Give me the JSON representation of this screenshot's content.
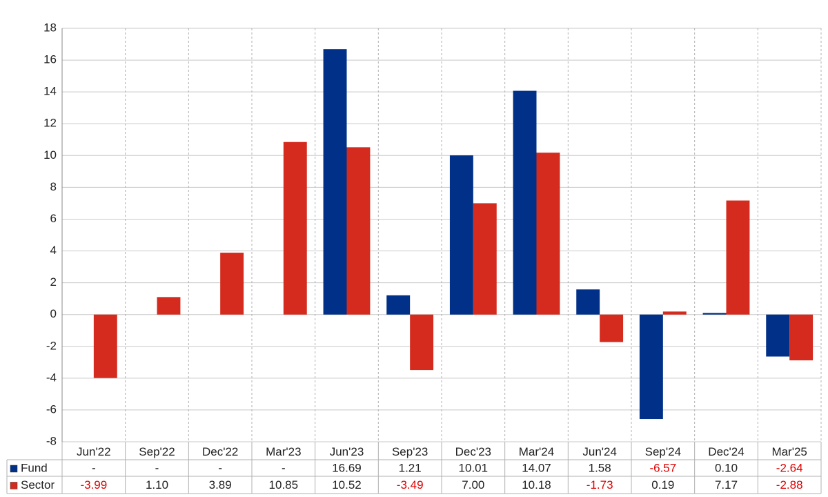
{
  "chart_data": {
    "type": "bar",
    "categories": [
      "Jun'22",
      "Sep'22",
      "Dec'22",
      "Mar'23",
      "Jun'23",
      "Sep'23",
      "Dec'23",
      "Mar'24",
      "Jun'24",
      "Sep'24",
      "Dec'24",
      "Mar'25"
    ],
    "series": [
      {
        "name": "Fund",
        "color": "#003087",
        "values": [
          null,
          null,
          null,
          null,
          16.69,
          1.21,
          10.01,
          14.07,
          1.58,
          -6.57,
          0.1,
          -2.64
        ],
        "value_labels": [
          "-",
          "-",
          "-",
          "-",
          "16.69",
          "1.21",
          "10.01",
          "14.07",
          "1.58",
          "-6.57",
          "0.10",
          "-2.64"
        ]
      },
      {
        "name": "Sector",
        "color": "#d52b1e",
        "values": [
          -3.99,
          1.1,
          3.89,
          10.85,
          10.52,
          -3.49,
          7.0,
          10.18,
          -1.73,
          0.19,
          7.17,
          -2.88
        ],
        "value_labels": [
          "-3.99",
          "1.10",
          "3.89",
          "10.85",
          "10.52",
          "-3.49",
          "7.00",
          "10.18",
          "-1.73",
          "0.19",
          "7.17",
          "-2.88"
        ]
      }
    ],
    "ylim": [
      -8,
      18
    ],
    "yticks": [
      -8,
      -6,
      -4,
      -2,
      0,
      2,
      4,
      6,
      8,
      10,
      12,
      14,
      16,
      18
    ],
    "grid": true,
    "negative_label_color": "#e00000"
  }
}
